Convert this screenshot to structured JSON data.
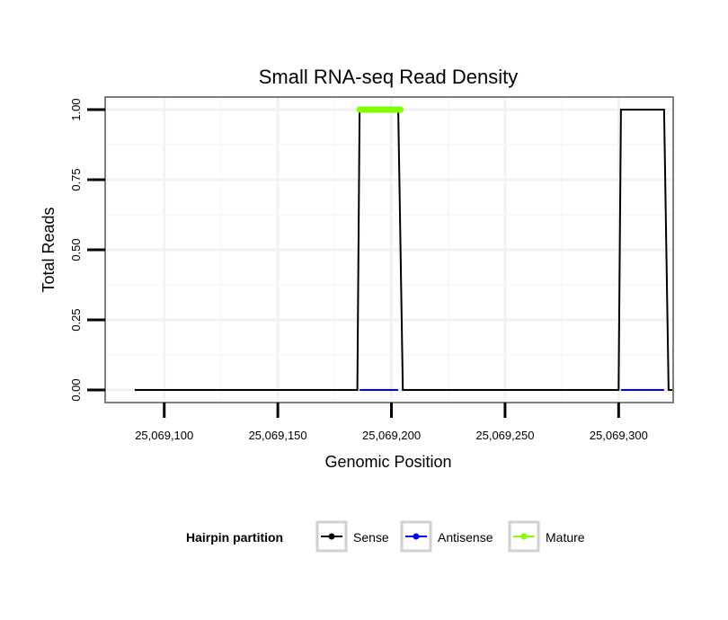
{
  "chart_data": {
    "type": "line",
    "title": "Small RNA-seq Read Density",
    "xlabel": "Genomic Position",
    "ylabel": "Total Reads",
    "xlim": [
      25069074,
      25069324
    ],
    "ylim": [
      -0.045,
      1.045
    ],
    "x_ticks": [
      25069100,
      25069150,
      25069200,
      25069250,
      25069300
    ],
    "x_tick_labels": [
      "25,069,100",
      "25,069,150",
      "25,069,200",
      "25,069,250",
      "25,069,300"
    ],
    "y_ticks": [
      0,
      0.25,
      0.5,
      0.75,
      1
    ],
    "y_tick_labels": [
      "0.00",
      "0.25",
      "0.50",
      "0.75",
      "1.00"
    ],
    "grid": true,
    "legend": {
      "title": "Hairpin partition",
      "position": "bottom",
      "entries": [
        "Sense",
        "Antisense",
        "Mature"
      ]
    },
    "series": [
      {
        "name": "Sense",
        "color": "#000000",
        "x": [
          25069087,
          25069185,
          25069186,
          25069203,
          25069205,
          25069300,
          25069301,
          25069320,
          25069322,
          25069324
        ],
        "values": [
          0,
          0,
          1,
          1,
          0,
          0,
          1,
          1,
          0,
          0
        ]
      },
      {
        "name": "Antisense",
        "color": "#0000ff",
        "x": [
          25069186,
          25069203,
          25069301,
          25069320
        ],
        "values": [
          0,
          0,
          0,
          0
        ],
        "segments": [
          [
            0,
            1
          ],
          [
            2,
            3
          ]
        ]
      },
      {
        "name": "Mature",
        "color": "#7fff00",
        "x": [
          25069186,
          25069204
        ],
        "values": [
          1,
          1
        ]
      }
    ]
  }
}
